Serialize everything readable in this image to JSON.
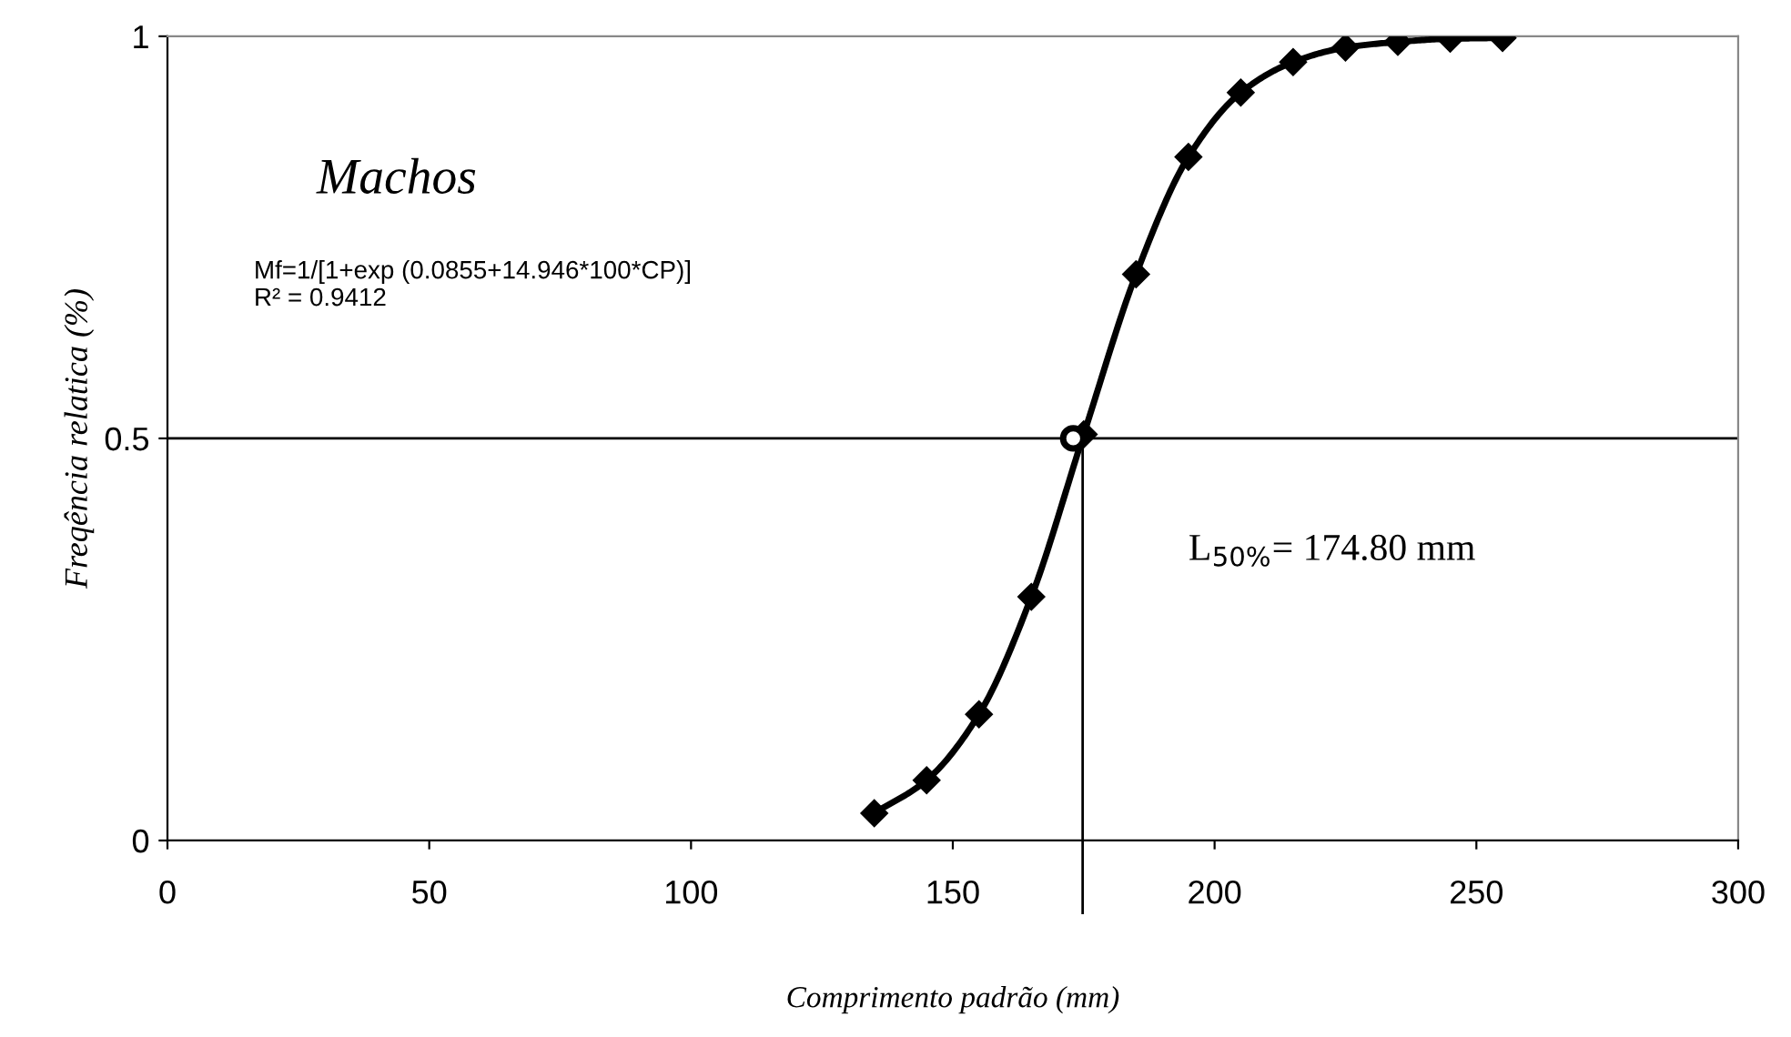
{
  "chart_data": {
    "type": "line",
    "xlabel": "Comprimento padrão (mm)",
    "ylabel": "Freqência relatica (%)",
    "annotations": [
      "Machos",
      "Mf=1/[1+exp (0.0855+14.946*100*CP)]\nR² = 0.9412",
      "L$_{50%}$= 174.80 mm"
    ],
    "xlim": [
      0,
      300
    ],
    "xticks": [
      0,
      50,
      100,
      150,
      200,
      250,
      300
    ],
    "ylim": [
      0,
      1
    ],
    "yticks": [
      0,
      0.5,
      1
    ],
    "grid": false,
    "legend": false,
    "marker": "diamond",
    "line_style": "solid",
    "series": [
      {
        "color": "#000000",
        "x": [
          135,
          145,
          155,
          165,
          175,
          185,
          195,
          205,
          215,
          225,
          235,
          245,
          255
        ],
        "values": [
          0.034,
          0.075,
          0.157,
          0.303,
          0.505,
          0.704,
          0.85,
          0.93,
          0.968,
          0.986,
          0.993,
          0.997,
          0.998
        ]
      },
      {
        "type": "scatter",
        "color": "#000000",
        "marker": "circle",
        "x": [
          173
        ],
        "values": [
          0.5
        ]
      }
    ],
    "ref_lines": [
      {
        "axis": "y",
        "value": 0.5,
        "color": "#000000"
      },
      {
        "axis": "x",
        "value": 174.8,
        "color": "#000000"
      }
    ]
  }
}
